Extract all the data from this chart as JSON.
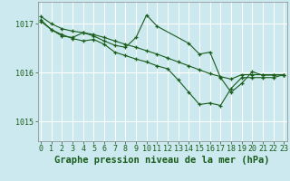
{
  "background_color": "#cbe9ef",
  "grid_color": "#ffffff",
  "line_color": "#1a5c1a",
  "xlabel": "Graphe pression niveau de la mer (hPa)",
  "xlabel_fontsize": 7.5,
  "tick_fontsize": 6,
  "ylim": [
    1014.6,
    1017.45
  ],
  "xlim": [
    -0.3,
    23.3
  ],
  "yticks": [
    1015,
    1016,
    1017
  ],
  "xticks": [
    0,
    1,
    2,
    3,
    4,
    5,
    6,
    7,
    8,
    9,
    10,
    11,
    12,
    13,
    14,
    15,
    16,
    17,
    18,
    19,
    20,
    21,
    22,
    23
  ],
  "series": [
    {
      "x": [
        0,
        1,
        2,
        3,
        4,
        5,
        6,
        7,
        8,
        9,
        10,
        11,
        12,
        13,
        14,
        15,
        16,
        17,
        18,
        19,
        20,
        21,
        22,
        23
      ],
      "y": [
        1017.15,
        1017.0,
        1016.9,
        1016.85,
        1016.82,
        1016.78,
        1016.72,
        1016.65,
        1016.58,
        1016.52,
        1016.45,
        1016.38,
        1016.3,
        1016.22,
        1016.14,
        1016.06,
        1015.98,
        1015.92,
        1015.87,
        1015.96,
        1015.96,
        1015.96,
        1015.96,
        1015.96
      ]
    },
    {
      "x": [
        0,
        1,
        2,
        3,
        4,
        5,
        6,
        7,
        8,
        9,
        10,
        11,
        14,
        15,
        16,
        17,
        18,
        19,
        20,
        21,
        22,
        23
      ],
      "y": [
        1017.05,
        1016.88,
        1016.75,
        1016.72,
        1016.82,
        1016.75,
        1016.65,
        1016.56,
        1016.52,
        1016.72,
        1017.18,
        1016.95,
        1016.6,
        1016.38,
        1016.42,
        1015.9,
        1015.6,
        1015.78,
        1016.02,
        1015.95,
        1015.95,
        1015.96
      ]
    },
    {
      "x": [
        0,
        1,
        2,
        3,
        4,
        5,
        6,
        7,
        8,
        9,
        10,
        11,
        12,
        13,
        14,
        15,
        16,
        17,
        18,
        19,
        20,
        21,
        22,
        23
      ],
      "y": [
        1017.08,
        1016.88,
        1016.78,
        1016.7,
        1016.65,
        1016.68,
        1016.58,
        1016.42,
        1016.35,
        1016.28,
        1016.22,
        1016.14,
        1016.08,
        1015.85,
        1015.6,
        1015.35,
        1015.38,
        1015.33,
        1015.68,
        1015.9,
        1015.9,
        1015.9,
        1015.9,
        1015.96
      ]
    }
  ]
}
